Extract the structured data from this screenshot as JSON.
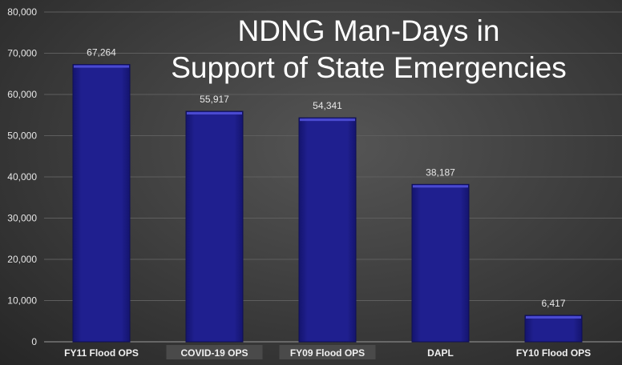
{
  "chart_data": {
    "type": "bar",
    "title_line1": "NDNG Man-Days in",
    "title_line2": "Support of State Emergencies",
    "categories": [
      "FY11 Flood OPS",
      "COVID-19 OPS",
      "FY09 Flood OPS",
      "DAPL",
      "FY10 Flood OPS"
    ],
    "values": [
      67264,
      55917,
      54341,
      38187,
      6417
    ],
    "data_labels": [
      "67,264",
      "55,917",
      "54,341",
      "38,187",
      "6,417"
    ],
    "yticks": [
      "0",
      "10,000",
      "20,000",
      "30,000",
      "40,000",
      "50,000",
      "60,000",
      "70,000",
      "80,000"
    ],
    "ylim": [
      0,
      80000
    ],
    "xlabel": "",
    "ylabel": "",
    "grid": true,
    "bar_color": "#1f1f8f"
  }
}
